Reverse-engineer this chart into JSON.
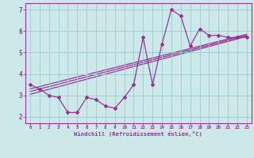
{
  "xlabel": "Windchill (Refroidissement éolien,°C)",
  "hours": [
    0,
    1,
    2,
    3,
    4,
    5,
    6,
    7,
    8,
    9,
    10,
    11,
    12,
    13,
    14,
    15,
    16,
    17,
    18,
    19,
    20,
    21,
    22,
    23
  ],
  "windchill": [
    3.5,
    3.3,
    3.0,
    2.9,
    2.2,
    2.2,
    2.9,
    2.8,
    2.5,
    2.4,
    2.9,
    3.5,
    5.7,
    3.5,
    5.4,
    7.0,
    6.7,
    5.3,
    6.1,
    5.8,
    5.8,
    5.7,
    5.7,
    5.7
  ],
  "reg_lines": [
    [
      3.3,
      5.85
    ],
    [
      3.05,
      5.75
    ],
    [
      3.18,
      5.8
    ]
  ],
  "bg_color": "#cce8e8",
  "line_color": "#993399",
  "grid_color": "#99cccc",
  "ylim": [
    1.7,
    7.3
  ],
  "yticks": [
    2,
    3,
    4,
    5,
    6,
    7
  ]
}
